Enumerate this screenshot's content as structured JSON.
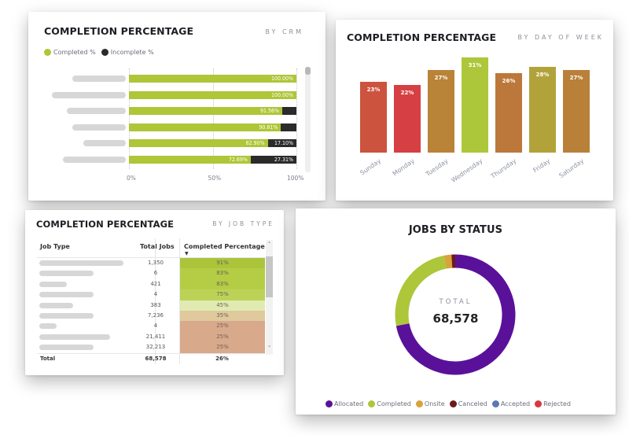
{
  "crm_card": {
    "title": "COMPLETION PERCENTAGE",
    "subtitle": "BY CRM",
    "legend": [
      {
        "label": "Completed %",
        "color": "#aec637"
      },
      {
        "label": "Incomplete %",
        "color": "#2b2b2b"
      }
    ],
    "chart_data": {
      "type": "bar",
      "orientation": "horizontal-stacked-100",
      "categories": [
        "(redacted)",
        "(redacted)",
        "(redacted)",
        "(redacted)",
        "(redacted)",
        "(redacted)"
      ],
      "series": [
        {
          "name": "Completed %",
          "values": [
            100.0,
            100.0,
            91.56,
            90.81,
            82.9,
            72.69
          ],
          "labels": [
            "100.00%",
            "100.00%",
            "91.56%",
            "90.81%",
            "82.90%",
            "72.69%"
          ]
        },
        {
          "name": "Incomplete %",
          "values": [
            0,
            0,
            8.44,
            9.19,
            17.1,
            27.31
          ],
          "labels": [
            "",
            "",
            "",
            "",
            "17.10%",
            "27.31%"
          ]
        }
      ],
      "xticks": [
        "0%",
        "50%",
        "100%"
      ],
      "xlim": [
        0,
        100
      ],
      "legend_position": "top-left"
    }
  },
  "day_card": {
    "title": "COMPLETION PERCENTAGE",
    "subtitle": "BY DAY OF WEEK",
    "chart_data": {
      "type": "bar",
      "categories": [
        "Sunday",
        "Monday",
        "Tuesday",
        "Wednesday",
        "Thursday",
        "Friday",
        "Saturday"
      ],
      "values": [
        23,
        22,
        27,
        31,
        26,
        28,
        27
      ],
      "labels": [
        "23%",
        "22%",
        "27%",
        "31%",
        "26%",
        "28%",
        "27%"
      ],
      "colors": [
        "#cc533e",
        "#d63f43",
        "#b98338",
        "#adc73a",
        "#bb783a",
        "#b1a33a",
        "#b9803a"
      ],
      "ylabel": "",
      "xlabel": ""
    }
  },
  "jobtype_card": {
    "title": "COMPLETION PERCENTAGE",
    "subtitle": "BY JOB TYPE",
    "columns": [
      "Job Type",
      "Total Jobs",
      "Completed Percentage"
    ],
    "sort_indicator": "sort-desc",
    "rows": [
      {
        "job_type": "(redacted)",
        "total": "1,350",
        "pct": "91%",
        "color": "#abc43a"
      },
      {
        "job_type": "(redacted)",
        "total": "6",
        "pct": "83%",
        "color": "#b5cc45"
      },
      {
        "job_type": "(redacted)",
        "total": "421",
        "pct": "83%",
        "color": "#b5cc45"
      },
      {
        "job_type": "(redacted)",
        "total": "4",
        "pct": "75%",
        "color": "#bcd257"
      },
      {
        "job_type": "(redacted)",
        "total": "383",
        "pct": "45%",
        "color": "#e1eab1"
      },
      {
        "job_type": "(redacted)",
        "total": "7,236",
        "pct": "35%",
        "color": "#dfc99d"
      },
      {
        "job_type": "(redacted)",
        "total": "4",
        "pct": "25%",
        "color": "#d9a98b"
      },
      {
        "job_type": "(redacted)",
        "total": "21,411",
        "pct": "25%",
        "color": "#d9a98b"
      },
      {
        "job_type": "(redacted)",
        "total": "32,213",
        "pct": "25%",
        "color": "#d9a98b"
      }
    ],
    "total": {
      "label": "Total",
      "total": "68,578",
      "pct": "26%"
    }
  },
  "status_card": {
    "title": "JOBS BY STATUS",
    "center_label": "TOTAL",
    "center_value": "68,578",
    "chart_data": {
      "type": "pie",
      "variant": "donut",
      "categories": [
        "Allocated",
        "Completed",
        "Onsite",
        "Canceled",
        "Accepted",
        "Rejected"
      ],
      "values_percent": [
        72.0,
        25.0,
        2.0,
        1.0,
        0.0,
        0.0
      ],
      "colors": [
        "#5a119a",
        "#adc63a",
        "#d9a23a",
        "#6b1a1a",
        "#5a7ab0",
        "#d63a3f"
      ],
      "legend_position": "bottom"
    }
  }
}
